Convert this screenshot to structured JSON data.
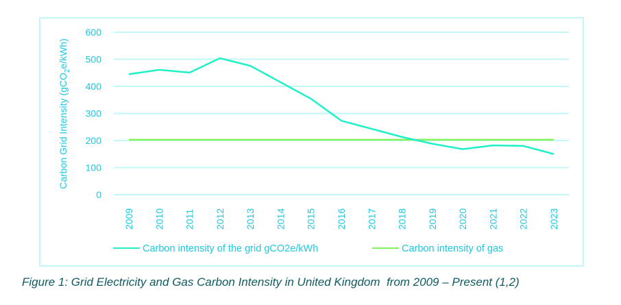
{
  "chart_data": {
    "type": "line",
    "title": "",
    "xlabel": "",
    "ylabel": "Carbon Grid Intensity (gCO2e/kWh)",
    "ylabel_parts": {
      "pre": "Carbon Grid Intensity (gCO",
      "sub": "2",
      "post": "e/kWh)"
    },
    "ylim": [
      0,
      600
    ],
    "yticks": [
      0,
      100,
      200,
      300,
      400,
      500,
      600
    ],
    "grid": true,
    "legend_position": "bottom",
    "categories": [
      "2009",
      "2010",
      "2011",
      "2012",
      "2013",
      "2014",
      "2015",
      "2016",
      "2017",
      "2018",
      "2019",
      "2020",
      "2021",
      "2022",
      "2023"
    ],
    "series": [
      {
        "name": "Carbon intensity of the grid gCO2e/kWh",
        "color": "#1ef0c8",
        "values": [
          445,
          461,
          451,
          504,
          476,
          415,
          354,
          273,
          243,
          213,
          188,
          168,
          182,
          180,
          150
        ]
      },
      {
        "name": "Carbon intensity of gas",
        "color": "#82f25a",
        "values": [
          203,
          203,
          203,
          203,
          203,
          203,
          203,
          203,
          203,
          203,
          203,
          203,
          203,
          203,
          203
        ]
      }
    ]
  },
  "colors": {
    "axis_text": "#1fc7e0",
    "gridline": "#c3f7fa",
    "caption": "#0f5a5f"
  },
  "caption": "Figure 1: Grid Electricity and Gas Carbon Intensity in United Kingdom  from 2009 – Present (1,2)"
}
